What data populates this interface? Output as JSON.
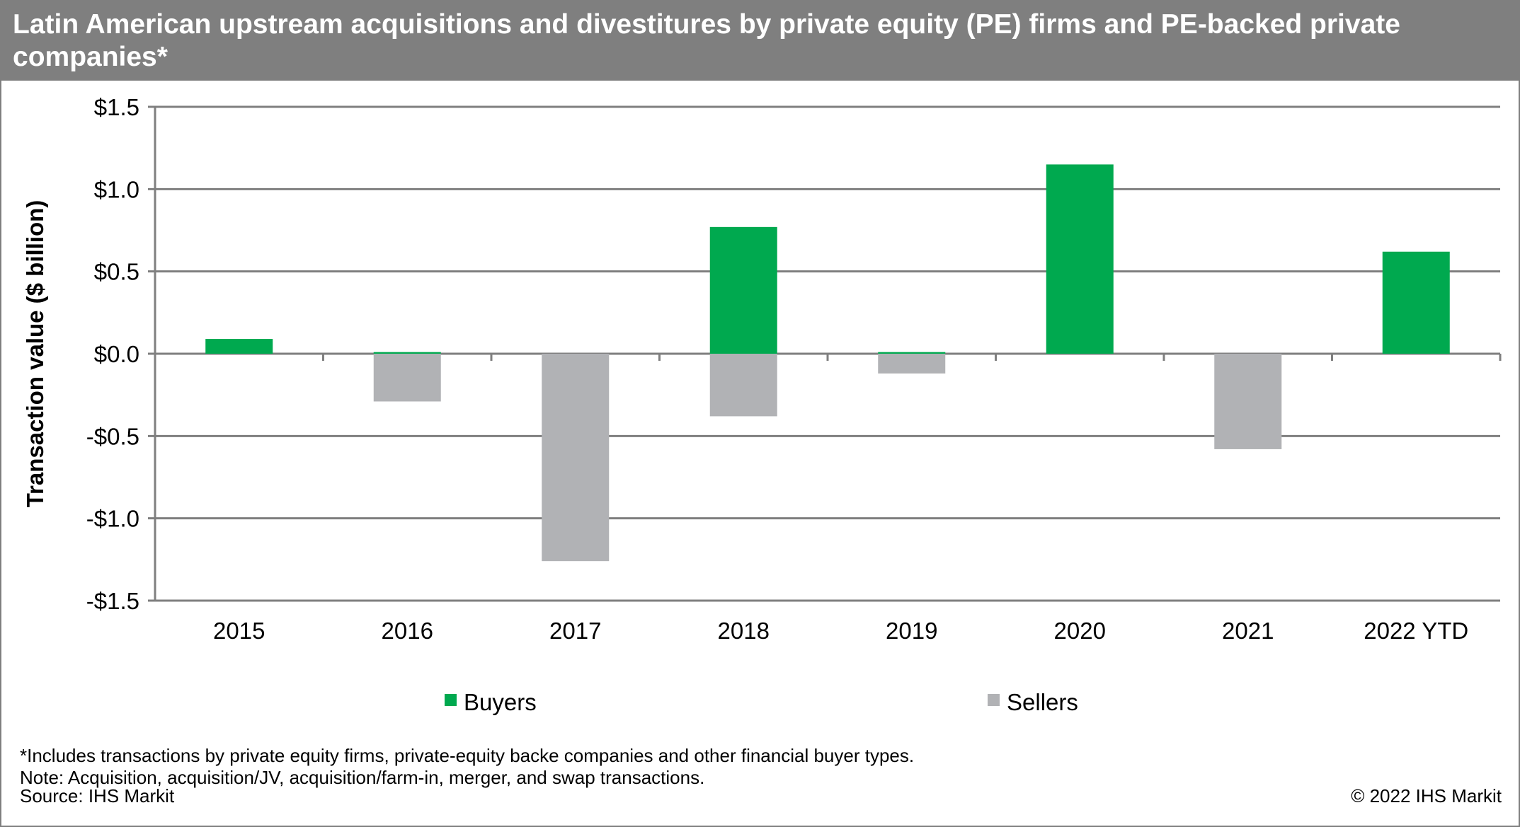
{
  "title": "Latin American upstream acquisitions and divestitures by private equity (PE) firms and PE-backed private companies*",
  "chart_data": {
    "type": "bar",
    "title": "Latin American upstream acquisitions and divestitures by private equity (PE) firms and PE-backed private companies*",
    "xlabel": "",
    "ylabel": "Transaction value ($ billion)",
    "categories": [
      "2015",
      "2016",
      "2017",
      "2018",
      "2019",
      "2020",
      "2021",
      "2022 YTD"
    ],
    "series": [
      {
        "name": "Buyers",
        "color": "#00a94f",
        "values": [
          0.09,
          0.01,
          0,
          0.77,
          0.01,
          1.15,
          0,
          0.62
        ]
      },
      {
        "name": "Sellers",
        "color": "#b1b2b5",
        "values": [
          0,
          -0.29,
          -1.26,
          -0.38,
          -0.12,
          0,
          -0.58,
          0
        ]
      }
    ],
    "ylim": [
      -1.5,
      1.5
    ],
    "yticks": [
      1.5,
      1.0,
      0.5,
      0.0,
      -0.5,
      -1.0,
      -1.5
    ],
    "ytick_labels": [
      "$1.5",
      "$1.0",
      "$0.5",
      "$0.0",
      "-$0.5",
      "-$1.0",
      "-$1.5"
    ],
    "grid": true,
    "legend": "bottom",
    "stacked": true
  },
  "footnotes": [
    "*Includes transactions by private equity firms, private-equity backe companies and other financial buyer types.",
    "Note: Acquisition, acquisition/JV, acquisition/farm-in, merger, and swap transactions.",
    "Source: IHS Markit"
  ],
  "copyright": "© 2022 IHS Markit"
}
